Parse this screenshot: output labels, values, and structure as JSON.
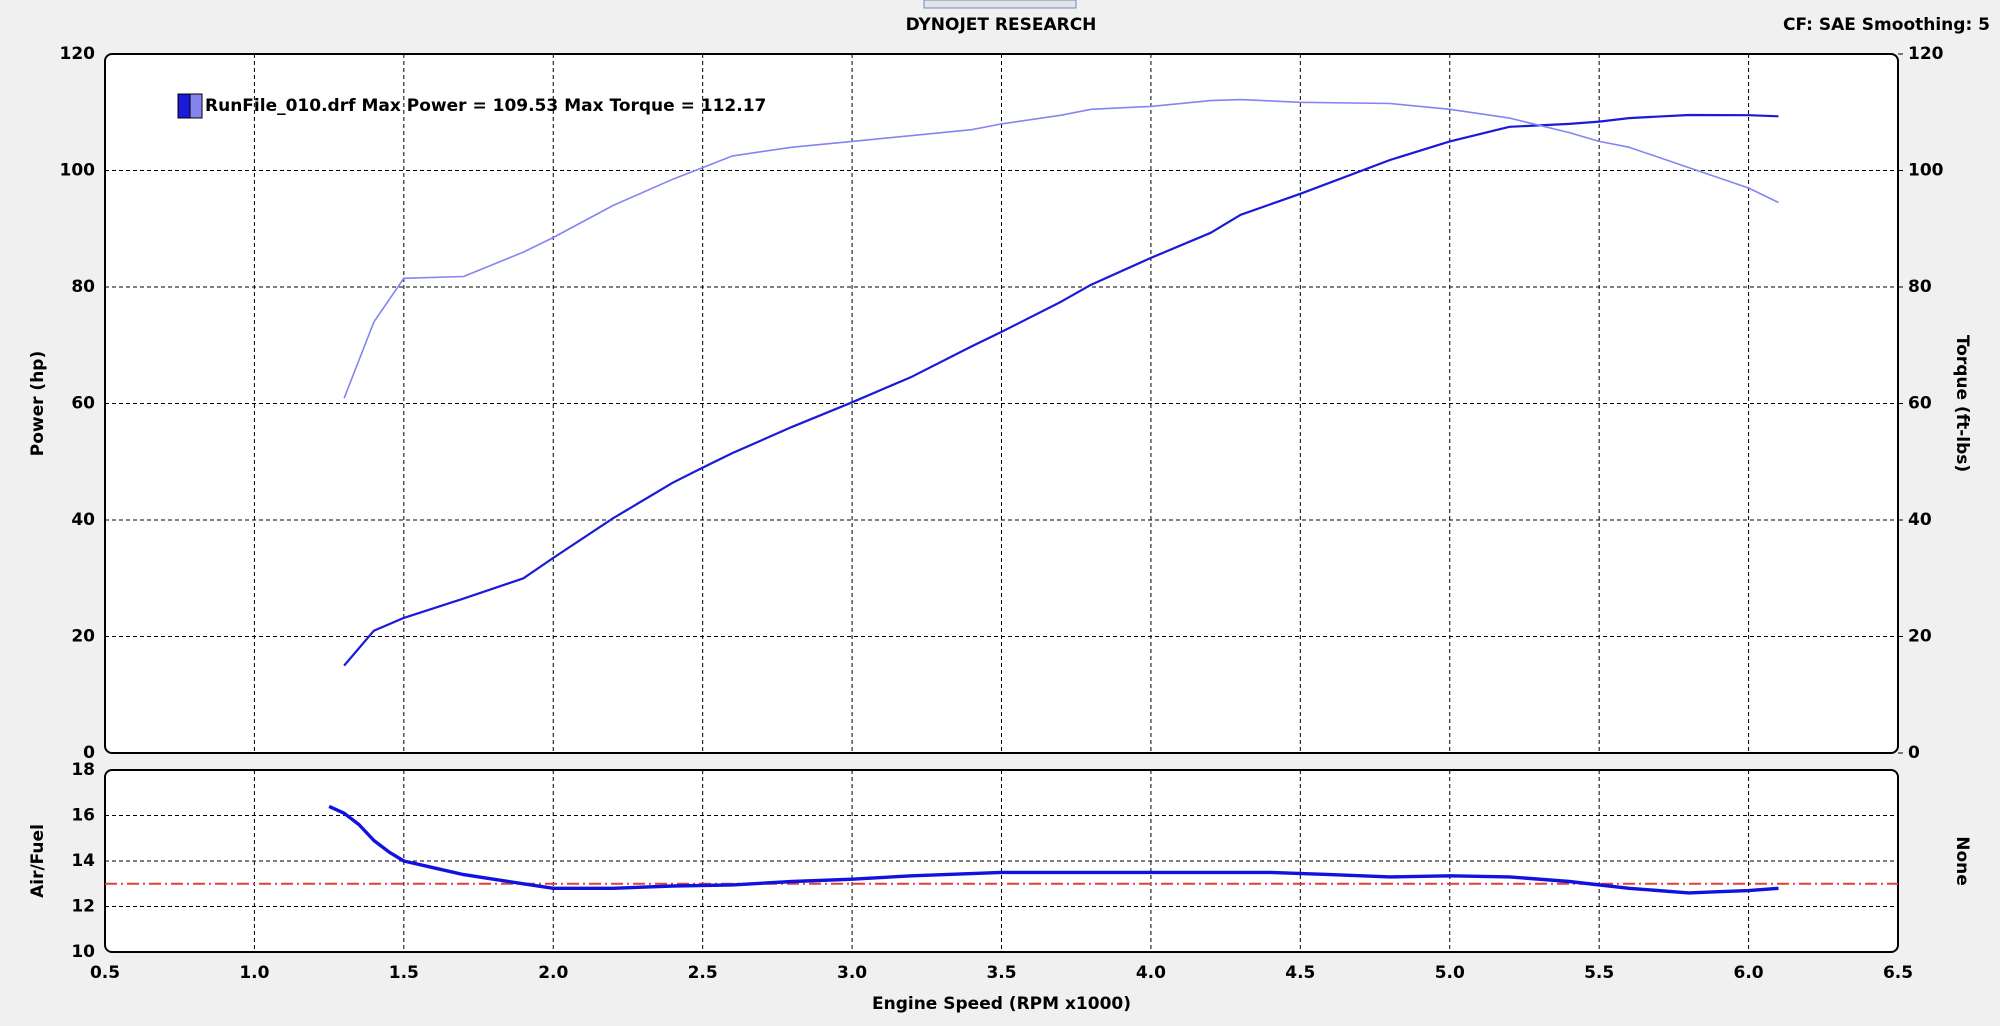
{
  "chart_data": [
    {
      "type": "line",
      "title": "DYNOJET RESEARCH",
      "annotation": "CF: SAE  Smoothing: 5",
      "ylabel": "Power (hp)",
      "y2label": "Torque (ft-lbs)",
      "xlim": [
        0.5,
        6.5
      ],
      "ylim": [
        0,
        120
      ],
      "yticks": [
        0,
        20,
        40,
        60,
        80,
        100,
        120
      ],
      "y2lim": [
        0,
        120
      ],
      "y2ticks": [
        0,
        20,
        40,
        60,
        80,
        100,
        120
      ],
      "grid": true,
      "legend": {
        "corner": "top-left",
        "label": "RunFile_010.drf",
        "notes": [
          "Max Power = 109.53",
          "Max Torque = 112.17"
        ]
      },
      "x": [
        1.3,
        1.4,
        1.5,
        1.7,
        1.9,
        2.0,
        2.2,
        2.4,
        2.5,
        2.6,
        2.8,
        3.0,
        3.2,
        3.4,
        3.5,
        3.7,
        3.8,
        4.0,
        4.2,
        4.3,
        4.5,
        4.8,
        5.0,
        5.2,
        5.4,
        5.5,
        5.6,
        5.8,
        6.0,
        6.1
      ],
      "series": [
        {
          "color": "#1a1ad8",
          "width": 2.2,
          "values": [
            15,
            21,
            23.2,
            26.5,
            30,
            33.5,
            40.3,
            46.4,
            49,
            51.5,
            56,
            60.2,
            64.6,
            69.8,
            72.3,
            77.5,
            80.4,
            85,
            89.3,
            92.4,
            96,
            101.8,
            105,
            107.5,
            108,
            108.4,
            109,
            109.53,
            109.5,
            109.3
          ]
        },
        {
          "color": "#8585f2",
          "width": 1.6,
          "axis": "y2",
          "values": [
            60.9,
            74,
            81.5,
            81.8,
            86,
            88.5,
            94,
            98.5,
            100.5,
            102.5,
            104,
            105,
            106,
            107,
            108,
            109.5,
            110.5,
            111,
            112,
            112.17,
            111.7,
            111.5,
            110.5,
            109,
            106.5,
            105,
            104,
            100.5,
            97,
            94.5
          ]
        }
      ]
    },
    {
      "type": "line",
      "ylabel": "Air/Fuel",
      "y2label": "None",
      "xlabel": "Engine Speed (RPM x1000)",
      "xlim": [
        0.5,
        6.5
      ],
      "xticks": [
        0.5,
        {
          "value": 1,
          "label": "1.0"
        },
        1.5,
        {
          "value": 2,
          "label": "2.0"
        },
        2.5,
        {
          "value": 3,
          "label": "3.0"
        },
        3.5,
        {
          "value": 4,
          "label": "4.0"
        },
        4.5,
        {
          "value": 5,
          "label": "5.0"
        },
        5.5,
        {
          "value": 6,
          "label": "6.0"
        },
        6.5
      ],
      "ylim": [
        10,
        18
      ],
      "yticks": [
        10,
        12,
        14,
        16,
        18
      ],
      "grid": true,
      "reference_line": {
        "value": 13,
        "color": "#e0403a"
      },
      "x": [
        1.25,
        1.3,
        1.35,
        1.4,
        1.45,
        1.5,
        1.6,
        1.7,
        1.8,
        1.9,
        2.0,
        2.2,
        2.4,
        2.6,
        2.8,
        3.0,
        3.2,
        3.5,
        4.0,
        4.4,
        4.6,
        4.8,
        5.0,
        5.2,
        5.4,
        5.6,
        5.8,
        5.9,
        6.0,
        6.1
      ],
      "series": [
        {
          "color": "#1212e0",
          "width": 3.4,
          "values": [
            16.4,
            16.1,
            15.6,
            14.9,
            14.4,
            14.0,
            13.7,
            13.4,
            13.2,
            13.0,
            12.8,
            12.8,
            12.9,
            12.95,
            13.1,
            13.2,
            13.35,
            13.5,
            13.5,
            13.5,
            13.4,
            13.3,
            13.35,
            13.3,
            13.1,
            12.8,
            12.6,
            12.65,
            12.7,
            12.8
          ]
        }
      ]
    }
  ]
}
